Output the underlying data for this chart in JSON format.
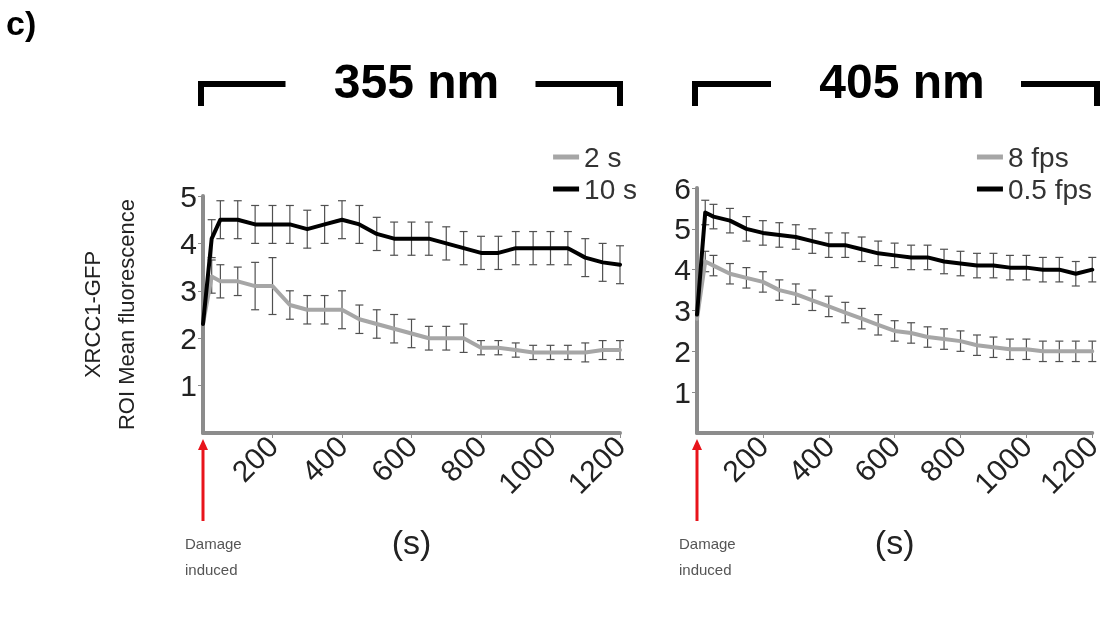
{
  "chart_data": [
    {
      "type": "line",
      "title": "355 nm",
      "xlabel": "(s)",
      "ylabel": "XRCC1-GFP\nROI Mean fluorescence",
      "x": [
        0,
        25,
        50,
        100,
        150,
        200,
        250,
        300,
        350,
        400,
        450,
        500,
        550,
        600,
        650,
        700,
        750,
        800,
        850,
        900,
        950,
        1000,
        1050,
        1100,
        1150,
        1200
      ],
      "series": [
        {
          "name": "2 s",
          "color": "#a6a6a6",
          "values": [
            2.3,
            3.3,
            3.2,
            3.2,
            3.1,
            3.1,
            2.7,
            2.6,
            2.6,
            2.6,
            2.4,
            2.3,
            2.2,
            2.1,
            2.0,
            2.0,
            2.0,
            1.8,
            1.8,
            1.75,
            1.7,
            1.7,
            1.7,
            1.7,
            1.75,
            1.75
          ],
          "errors": [
            null,
            0.35,
            0.35,
            0.3,
            0.5,
            0.6,
            0.3,
            0.3,
            0.3,
            0.4,
            0.3,
            0.3,
            0.3,
            0.3,
            0.25,
            0.25,
            0.3,
            0.15,
            0.15,
            0.15,
            0.15,
            0.15,
            0.15,
            0.2,
            0.2,
            0.2
          ]
        },
        {
          "name": "10 s",
          "color": "#000000",
          "values": [
            2.3,
            4.1,
            4.5,
            4.5,
            4.4,
            4.4,
            4.4,
            4.3,
            4.4,
            4.5,
            4.4,
            4.2,
            4.1,
            4.1,
            4.1,
            4.0,
            3.9,
            3.8,
            3.8,
            3.9,
            3.9,
            3.9,
            3.9,
            3.7,
            3.6,
            3.55
          ],
          "errors": [
            null,
            0.4,
            0.4,
            0.4,
            0.4,
            0.4,
            0.4,
            0.4,
            0.4,
            0.4,
            0.4,
            0.35,
            0.35,
            0.35,
            0.35,
            0.35,
            0.35,
            0.35,
            0.35,
            0.35,
            0.35,
            0.35,
            0.35,
            0.4,
            0.4,
            0.4
          ]
        }
      ],
      "xlim": [
        0,
        1200
      ],
      "xticks": [
        200,
        400,
        600,
        800,
        1000,
        1200
      ],
      "ylim": [
        0,
        5
      ],
      "yticks": [
        1,
        2,
        3,
        4,
        5
      ],
      "legend": "top right",
      "grid": false,
      "marker": "none",
      "line_style": "solid",
      "annotations": [
        "c)",
        "Damage induced"
      ]
    },
    {
      "type": "line",
      "title": "405 nm",
      "xlabel": "(s)",
      "x": [
        0,
        25,
        50,
        100,
        150,
        200,
        250,
        300,
        350,
        400,
        450,
        500,
        550,
        600,
        650,
        700,
        750,
        800,
        850,
        900,
        950,
        1000,
        1050,
        1100,
        1150,
        1200
      ],
      "series": [
        {
          "name": "8 fps",
          "color": "#a6a6a6",
          "values": [
            2.8,
            4.2,
            4.1,
            3.9,
            3.8,
            3.7,
            3.5,
            3.4,
            3.25,
            3.1,
            2.95,
            2.8,
            2.65,
            2.5,
            2.45,
            2.35,
            2.3,
            2.25,
            2.15,
            2.1,
            2.05,
            2.05,
            2.0,
            2.0,
            2.0,
            2.0
          ],
          "errors": [
            null,
            0.25,
            0.25,
            0.25,
            0.25,
            0.25,
            0.25,
            0.25,
            0.25,
            0.25,
            0.25,
            0.25,
            0.25,
            0.25,
            0.25,
            0.25,
            0.25,
            0.25,
            0.25,
            0.25,
            0.25,
            0.25,
            0.25,
            0.25,
            0.25,
            0.25
          ]
        },
        {
          "name": "0.5 fps",
          "color": "#000000",
          "values": [
            2.9,
            5.4,
            5.3,
            5.2,
            5.0,
            4.9,
            4.85,
            4.8,
            4.7,
            4.6,
            4.6,
            4.5,
            4.4,
            4.35,
            4.3,
            4.3,
            4.2,
            4.15,
            4.1,
            4.1,
            4.05,
            4.05,
            4.0,
            4.0,
            3.9,
            4.0
          ],
          "errors": [
            null,
            0.3,
            0.3,
            0.3,
            0.3,
            0.3,
            0.3,
            0.3,
            0.3,
            0.3,
            0.3,
            0.3,
            0.3,
            0.3,
            0.3,
            0.3,
            0.3,
            0.3,
            0.3,
            0.3,
            0.3,
            0.3,
            0.3,
            0.3,
            0.3,
            0.3
          ]
        }
      ],
      "xlim": [
        0,
        1200
      ],
      "xticks": [
        200,
        400,
        600,
        800,
        1000,
        1200
      ],
      "ylim": [
        0,
        6
      ],
      "yticks": [
        1,
        2,
        3,
        4,
        5,
        6
      ],
      "legend": "top right",
      "grid": false,
      "marker": "none",
      "line_style": "solid",
      "annotations": [
        "Damage induced"
      ]
    }
  ]
}
